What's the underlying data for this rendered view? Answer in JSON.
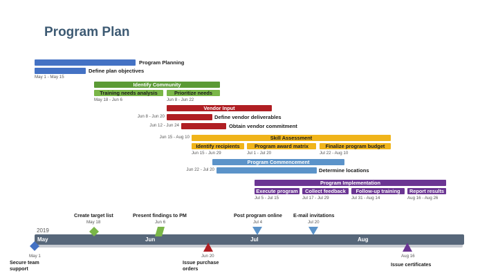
{
  "title": "Program Plan",
  "colors": {
    "blue": "#4472c4",
    "green": "#7ab648",
    "green_dark": "#5b9a35",
    "red": "#b01e23",
    "gold": "#f0b41a",
    "steel": "#5b93c9",
    "purple": "#6b3593",
    "timeline": "#57677a"
  },
  "groups": [
    {
      "name": "Program Planning",
      "tasks": [
        {
          "name": "Define plan objectives",
          "dates": "May 1 - May 15"
        }
      ]
    },
    {
      "name": "Identify Community",
      "tasks": [
        {
          "name": "Training needs analysis",
          "dates": "May 18 - Jun 6"
        },
        {
          "name": "Prioritize needs",
          "dates": "Jun 8 - Jun 22"
        }
      ]
    },
    {
      "name": "Vendor Input",
      "tasks": [
        {
          "name": "Define vendor deliverables",
          "dates": "Jun 8 - Jun 20"
        },
        {
          "name": "Obtain vendor commitment",
          "dates": "Jun 12 - Jun 24"
        }
      ]
    },
    {
      "name": "Skill Assessment",
      "dates": "Jun 15 - Aug 10",
      "tasks": [
        {
          "name": "Identify recipients",
          "dates": "Jun 15 - Jun 29"
        },
        {
          "name": "Program award matrix",
          "dates": "Jul 1 - Jul 20"
        },
        {
          "name": "Finalize program budget",
          "dates": "Jul 22 - Aug 10"
        }
      ]
    },
    {
      "name": "Program Commencement",
      "tasks": [
        {
          "name": "Determine locations",
          "dates": "Jun 22 - Jul 20"
        }
      ]
    },
    {
      "name": "Program Implementation",
      "tasks": [
        {
          "name": "Execute program",
          "dates": "Jul 5 - Jul 15"
        },
        {
          "name": "Collect feedback",
          "dates": "Jul 17 - Jul 29"
        },
        {
          "name": "Follow-up training",
          "dates": "Jul 31 - Aug 14"
        },
        {
          "name": "Report results",
          "dates": "Aug 16 - Aug 26"
        }
      ]
    }
  ],
  "timeline": {
    "year": "2019",
    "months": [
      "May",
      "Jun",
      "Jul",
      "Aug"
    ]
  },
  "milestones": [
    {
      "name": "Secure team support",
      "date": "May 1",
      "shape": "diamond"
    },
    {
      "name": "Create target list",
      "date": "May 18",
      "shape": "diamond"
    },
    {
      "name": "Present findings to PM",
      "date": "Jun 6",
      "shape": "parallelogram"
    },
    {
      "name": "Issue purchase orders",
      "date": "Jun 20",
      "shape": "triangle-up"
    },
    {
      "name": "Post program online",
      "date": "Jul 4",
      "shape": "triangle-down"
    },
    {
      "name": "E-mail invitations",
      "date": "Jul 20",
      "shape": "triangle-down"
    },
    {
      "name": "Issue certificates",
      "date": "Aug 16",
      "shape": "triangle-up"
    }
  ]
}
